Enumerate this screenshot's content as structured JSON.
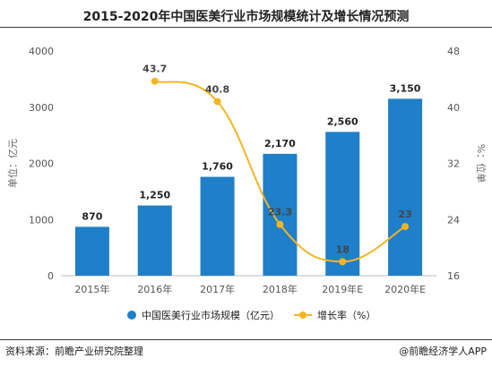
{
  "title": "2015-2020年中国医美行业市场规模统计及增长情况预测",
  "footer": {
    "source": "资料来源：前瞻产业研究院整理",
    "brand": "@前瞻经济学人APP"
  },
  "chart_data": {
    "type": "bar",
    "categories": [
      "2015年",
      "2016年",
      "2017年",
      "2018年",
      "2019年E",
      "2020年E"
    ],
    "series": [
      {
        "name": "中国医美行业市场规模（亿元）",
        "kind": "bar",
        "axis": "left",
        "values": [
          870,
          1250,
          1760,
          2170,
          2560,
          3150
        ],
        "labels": [
          "870",
          "1,250",
          "1,760",
          "2,170",
          "2,560",
          "3,150"
        ]
      },
      {
        "name": "增长率（%）",
        "kind": "line",
        "axis": "right",
        "values": [
          null,
          43.7,
          40.8,
          23.3,
          18,
          23
        ],
        "labels": [
          "",
          "43.7",
          "40.8",
          "23.3",
          "18",
          "23"
        ]
      }
    ],
    "ylabel": "单位：亿元",
    "y2label": "%：位单",
    "ylim": [
      0,
      4000
    ],
    "yticks": [
      "0",
      "1000",
      "2000",
      "3000",
      "4000"
    ],
    "y2lim": [
      16,
      48
    ],
    "y2ticks": [
      "16",
      "24",
      "32",
      "40",
      "48"
    ],
    "colors": {
      "bar": "#1f7fc8",
      "line": "#f5b521"
    },
    "legend_position": "bottom",
    "grid": false
  }
}
